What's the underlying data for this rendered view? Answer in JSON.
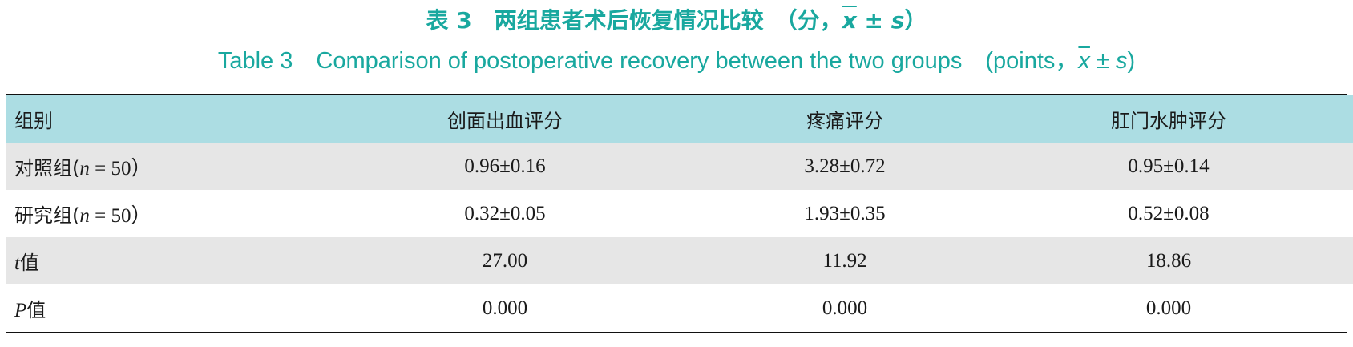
{
  "title": {
    "cn_prefix": "表 3　两组患者术后恢复情况比较　（分，",
    "cn_mean_symbol": "x",
    "cn_pm": " ± ",
    "cn_sd_symbol": "s",
    "cn_suffix": "）",
    "en_prefix": "Table 3　Comparison of postoperative recovery between the two groups　(points，",
    "en_mean_symbol": "x",
    "en_pm": " ± ",
    "en_sd_symbol": "s",
    "en_suffix": ")"
  },
  "table": {
    "headers": [
      "组别",
      "创面出血评分",
      "疼痛评分",
      "肛门水肿评分"
    ],
    "rows": [
      {
        "group": "对照组(",
        "n_symbol": "n",
        "n_value": " = 50）",
        "values": [
          "0.96±0.16",
          "3.28±0.72",
          "0.95±0.14"
        ]
      },
      {
        "group": "研究组(",
        "n_symbol": "n",
        "n_value": " = 50）",
        "values": [
          "0.32±0.05",
          "1.93±0.35",
          "0.52±0.08"
        ]
      },
      {
        "stat_symbol": "t",
        "stat_label": "值",
        "values": [
          "27.00",
          "11.92",
          "18.86"
        ]
      },
      {
        "stat_symbol": "P",
        "stat_label": "值",
        "values": [
          "0.000",
          "0.000",
          "0.000"
        ]
      }
    ]
  },
  "colors": {
    "title": "#19a89f",
    "header_bg": "#acdde3",
    "row_grey": "#e6e6e6"
  }
}
